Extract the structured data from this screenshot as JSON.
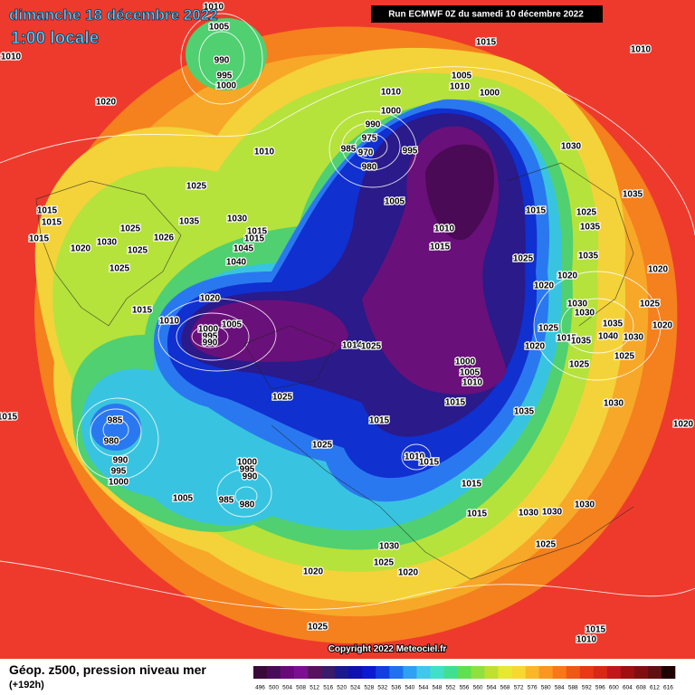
{
  "header": {
    "date": "dimanche 18 décembre 2022",
    "time": "1:00 locale",
    "run": "Run ECMWF 0Z du samedi 10 décembre 2022"
  },
  "copyright": "Copyright 2022 Meteociel.fr",
  "pressure_labels": [
    1010,
    1005,
    990,
    995,
    1000,
    1010,
    1020,
    1015,
    1005,
    1010,
    1000,
    1010,
    1000,
    990,
    975,
    985,
    970,
    980,
    995,
    1010,
    1030,
    1035,
    1015,
    1025,
    1035,
    1005,
    1010,
    1015,
    1025,
    1035,
    1020,
    1020,
    1020,
    1030,
    1030,
    1025,
    1035,
    1020,
    1040,
    1030,
    1025,
    1015,
    1035,
    1020,
    1025,
    1025,
    1030,
    1035,
    1000,
    1005,
    1010,
    1015,
    1014,
    1025,
    1020,
    1010,
    1000,
    1005,
    995,
    990,
    1025,
    1015,
    1025,
    1010,
    1015,
    1015,
    1015,
    1030,
    1030,
    1030,
    1025,
    1020,
    1030,
    1025,
    1020,
    1025,
    1015,
    1010,
    1025,
    1035,
    1030,
    1045,
    1040,
    1015,
    1015,
    1025,
    1026,
    1025,
    1030,
    1020,
    1015,
    1015,
    1015,
    1025,
    1015,
    1015,
    985,
    980,
    990,
    995,
    1000,
    1005,
    1000,
    995,
    990,
    985,
    980,
    1010,
    1020
  ],
  "legend": {
    "title": "Géop. z500, pression niveau mer",
    "lead": "(+192h)",
    "levels": [
      496,
      500,
      504,
      508,
      512,
      516,
      520,
      524,
      528,
      532,
      536,
      540,
      544,
      548,
      552,
      556,
      560,
      564,
      568,
      572,
      576,
      580,
      584,
      588,
      592,
      596,
      600,
      604,
      608,
      612,
      616
    ],
    "colors": [
      "#3a0a3a",
      "#4a0a5a",
      "#6a0a7a",
      "#7a1090",
      "#5a1060",
      "#3a1a6a",
      "#1a1a8a",
      "#1010b0",
      "#0a1ad0",
      "#1040e0",
      "#2070f0",
      "#30a0f0",
      "#40c8e8",
      "#40e0c8",
      "#40e090",
      "#60e050",
      "#90e040",
      "#c0e030",
      "#e8e830",
      "#f8d830",
      "#f8b828",
      "#f89820",
      "#f87818",
      "#f05818",
      "#e83818",
      "#d82818",
      "#c01818",
      "#a01010",
      "#801010",
      "#601010",
      "#200000"
    ]
  }
}
